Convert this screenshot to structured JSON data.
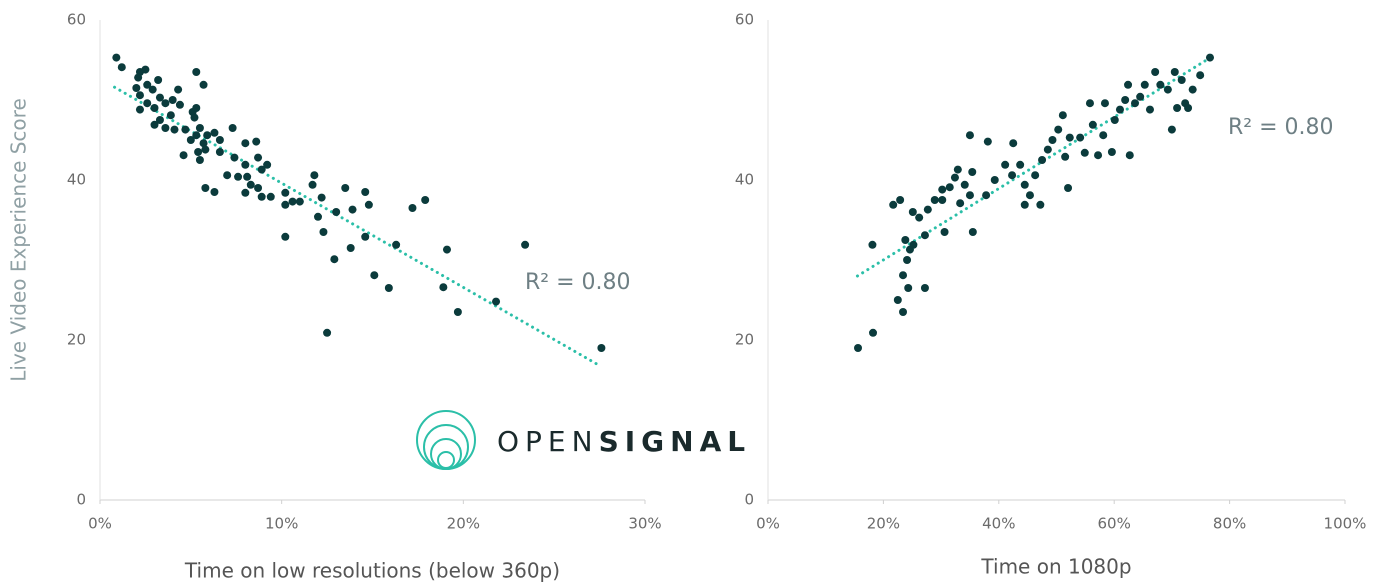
{
  "chart_data": [
    {
      "type": "scatter",
      "xlabel": "Time on low resolutions (below 360p)",
      "ylabel": "Live Video Experience Score",
      "color": "#0b3b3c",
      "x": [
        0.9,
        1.2,
        2.2,
        2.5,
        2.1,
        3.2,
        2.6,
        2.0,
        2.9,
        4.3,
        5.3,
        5.7,
        2.2,
        3.3,
        4.0,
        2.6,
        3.6,
        4.4,
        2.2,
        3.0,
        5.1,
        5.3,
        3.9,
        3.3,
        5.2,
        3.0,
        3.6,
        4.1,
        4.7,
        5.5,
        7.3,
        5.3,
        5.9,
        6.3,
        5.0,
        5.7,
        6.6,
        8.0,
        8.6,
        5.4,
        4.6,
        5.8,
        6.6,
        7.4,
        8.7,
        5.5,
        8.0,
        9.2,
        8.9,
        7.0,
        7.6,
        8.1,
        5.8,
        6.3,
        8.3,
        8.7,
        8.0,
        8.9,
        9.4,
        10.2,
        10.2,
        10.6,
        11.0,
        11.7,
        11.8,
        12.2,
        12.0,
        13.0,
        13.5,
        13.9,
        14.6,
        14.8,
        10.2,
        12.3,
        13.8,
        14.6,
        16.3,
        12.9,
        15.1,
        15.9,
        17.2,
        17.9,
        19.1,
        18.9,
        19.7,
        21.8,
        23.4,
        12.5,
        27.6
      ],
      "y": [
        55.3,
        54.1,
        53.5,
        53.8,
        52.8,
        52.5,
        51.9,
        51.5,
        51.3,
        51.3,
        53.5,
        51.9,
        50.6,
        50.3,
        50,
        49.6,
        49.6,
        49.4,
        48.8,
        49,
        48.5,
        49,
        48.1,
        47.5,
        47.8,
        46.9,
        46.5,
        46.3,
        46.3,
        46.5,
        46.5,
        45.6,
        45.6,
        45.9,
        45,
        44.6,
        45,
        44.6,
        44.8,
        43.5,
        43.1,
        43.8,
        43.5,
        42.8,
        42.8,
        42.5,
        41.9,
        41.9,
        41.3,
        40.6,
        40.4,
        40.4,
        39,
        38.5,
        39.4,
        39,
        38.4,
        37.9,
        37.9,
        38.4,
        36.9,
        37.3,
        37.3,
        39.4,
        40.6,
        37.8,
        35.4,
        36,
        39,
        36.3,
        38.5,
        36.9,
        32.9,
        33.5,
        31.5,
        32.9,
        31.9,
        30.1,
        28.1,
        26.5,
        36.5,
        37.5,
        31.3,
        26.6,
        23.5,
        24.8,
        31.9,
        20.9,
        19
      ],
      "xlim": [
        0,
        30
      ],
      "xticks": [
        {
          "value": 0,
          "label": "0%"
        },
        {
          "value": 10,
          "label": "10%"
        },
        {
          "value": 20,
          "label": "20%"
        },
        {
          "value": 30,
          "label": "30%"
        }
      ],
      "ylim": [
        0,
        60
      ],
      "yticks": [
        0,
        20,
        40,
        60
      ],
      "trendline": {
        "x": [
          0.8,
          27.5
        ],
        "y": [
          51.6,
          16.8
        ],
        "color": "#2bbfa8"
      },
      "annotation": "R² = 0.80"
    },
    {
      "type": "scatter",
      "xlabel": "Time on 1080p",
      "color": "#0b3b3c",
      "x": [
        15.6,
        18.2,
        18.1,
        24.6,
        21.7,
        22.9,
        25.1,
        26.2,
        27.7,
        27.2,
        23.8,
        25.2,
        24.1,
        23.4,
        24.3,
        27.2,
        22.5,
        23.4,
        28.9,
        30.2,
        31.5,
        32.4,
        32.9,
        34.1,
        35.0,
        35.4,
        30.2,
        33.3,
        30.6,
        35.5,
        35.0,
        38.1,
        37.8,
        39.3,
        41.1,
        42.5,
        42.3,
        43.7,
        44.5,
        44.5,
        45.4,
        46.3,
        47.2,
        47.5,
        48.5,
        49.3,
        50.3,
        51.1,
        52.3,
        52.0,
        51.5,
        54.1,
        54.9,
        55.8,
        56.3,
        57.2,
        58.1,
        58.4,
        59.6,
        60.1,
        61.0,
        61.9,
        62.7,
        62.4,
        63.6,
        64.5,
        65.3,
        66.2,
        67.1,
        68.0,
        69.3,
        70.0,
        70.5,
        70.9,
        71.7,
        72.3,
        72.8,
        73.6,
        74.9,
        76.6
      ],
      "y": [
        19,
        20.9,
        31.9,
        31.3,
        36.9,
        37.5,
        36,
        35.3,
        36.3,
        33.1,
        32.5,
        31.9,
        30,
        28.1,
        26.5,
        26.5,
        25,
        23.5,
        37.5,
        38.8,
        39.1,
        40.3,
        41.3,
        39.4,
        38.1,
        41,
        37.5,
        37.1,
        33.5,
        33.5,
        45.6,
        44.8,
        38.1,
        40,
        41.9,
        44.6,
        40.6,
        41.9,
        39.4,
        36.9,
        38.1,
        40.6,
        36.9,
        42.5,
        43.8,
        45,
        46.3,
        48.1,
        45.3,
        39,
        42.9,
        45.3,
        43.4,
        49.6,
        46.9,
        43.1,
        45.6,
        49.6,
        43.5,
        47.5,
        48.8,
        50,
        43.1,
        51.9,
        49.6,
        50.4,
        51.9,
        48.8,
        53.5,
        51.9,
        51.3,
        46.3,
        53.5,
        49,
        52.5,
        49.6,
        49,
        51.3,
        53.1,
        55.3
      ],
      "xlim": [
        0,
        100
      ],
      "xticks": [
        {
          "value": 0,
          "label": "0%"
        },
        {
          "value": 20,
          "label": "20%"
        },
        {
          "value": 40,
          "label": "40%"
        },
        {
          "value": 60,
          "label": "60%"
        },
        {
          "value": 80,
          "label": "80%"
        },
        {
          "value": 100,
          "label": "100%"
        }
      ],
      "ylim": [
        0,
        60
      ],
      "yticks": [
        0,
        20,
        40,
        60
      ],
      "trendline": {
        "x": [
          15.5,
          76
        ],
        "y": [
          28,
          55
        ],
        "color": "#2bbfa8"
      },
      "annotation": "R² = 0.80"
    }
  ],
  "logo": {
    "text_light": "OPEN",
    "text_bold": "SIGNAL"
  }
}
